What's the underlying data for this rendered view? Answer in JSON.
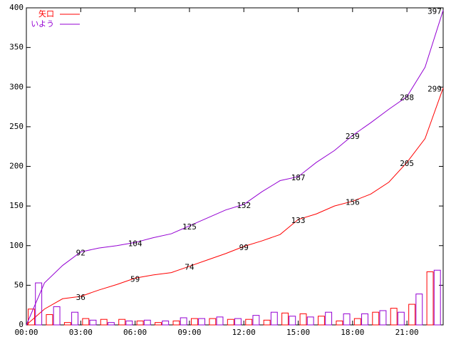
{
  "chart_data": {
    "type": "line",
    "x": [
      0,
      1,
      2,
      3,
      4,
      5,
      6,
      7,
      8,
      9,
      10,
      11,
      12,
      13,
      14,
      15,
      16,
      17,
      18,
      19,
      20,
      21,
      22,
      23
    ],
    "xlim": [
      0,
      23
    ],
    "xticks": [
      {
        "value": 0,
        "label": "00:00"
      },
      {
        "value": 3,
        "label": "03:00"
      },
      {
        "value": 6,
        "label": "06:00"
      },
      {
        "value": 9,
        "label": "09:00"
      },
      {
        "value": 12,
        "label": "12:00"
      },
      {
        "value": 15,
        "label": "15:00"
      },
      {
        "value": 18,
        "label": "18:00"
      },
      {
        "value": 21,
        "label": "21:00"
      }
    ],
    "ylim": [
      0,
      400
    ],
    "yticks": [
      0,
      50,
      100,
      150,
      200,
      250,
      300,
      350,
      400
    ],
    "legend": "top-left",
    "series": [
      {
        "name": "矢口",
        "color": "#ff0000",
        "values": [
          0,
          20,
          33,
          36,
          44,
          51,
          59,
          63,
          66,
          74,
          82,
          90,
          99,
          106,
          114,
          133,
          140,
          150,
          156,
          165,
          180,
          205,
          235,
          299
        ],
        "hourly": [
          20,
          13,
          3,
          8,
          7,
          7,
          5,
          3,
          5,
          8,
          8,
          7,
          7,
          6,
          15,
          14,
          11,
          5,
          8,
          16,
          21,
          26,
          67
        ],
        "labels": [
          {
            "x": 3,
            "value": 36
          },
          {
            "x": 6,
            "value": 59
          },
          {
            "x": 9,
            "value": 74
          },
          {
            "x": 12,
            "value": 99
          },
          {
            "x": 15,
            "value": 133
          },
          {
            "x": 18,
            "value": 156
          },
          {
            "x": 21,
            "value": 205
          },
          {
            "x": 23,
            "value": 299
          }
        ]
      },
      {
        "name": "いよう",
        "color": "#9400d3",
        "values": [
          0,
          53,
          75,
          92,
          97,
          100,
          104,
          110,
          115,
          125,
          135,
          145,
          152,
          168,
          182,
          187,
          205,
          220,
          239,
          255,
          272,
          288,
          325,
          397
        ],
        "hourly": [
          53,
          23,
          16,
          6,
          3,
          5,
          6,
          5,
          9,
          8,
          10,
          8,
          12,
          16,
          11,
          10,
          16,
          14,
          14,
          18,
          16,
          39,
          69
        ],
        "labels": [
          {
            "x": 3,
            "value": 92
          },
          {
            "x": 6,
            "value": 104
          },
          {
            "x": 9,
            "value": 125
          },
          {
            "x": 12,
            "value": 152
          },
          {
            "x": 15,
            "value": 187
          },
          {
            "x": 18,
            "value": 239
          },
          {
            "x": 21,
            "value": 288
          },
          {
            "x": 23,
            "value": 397
          }
        ]
      }
    ]
  }
}
